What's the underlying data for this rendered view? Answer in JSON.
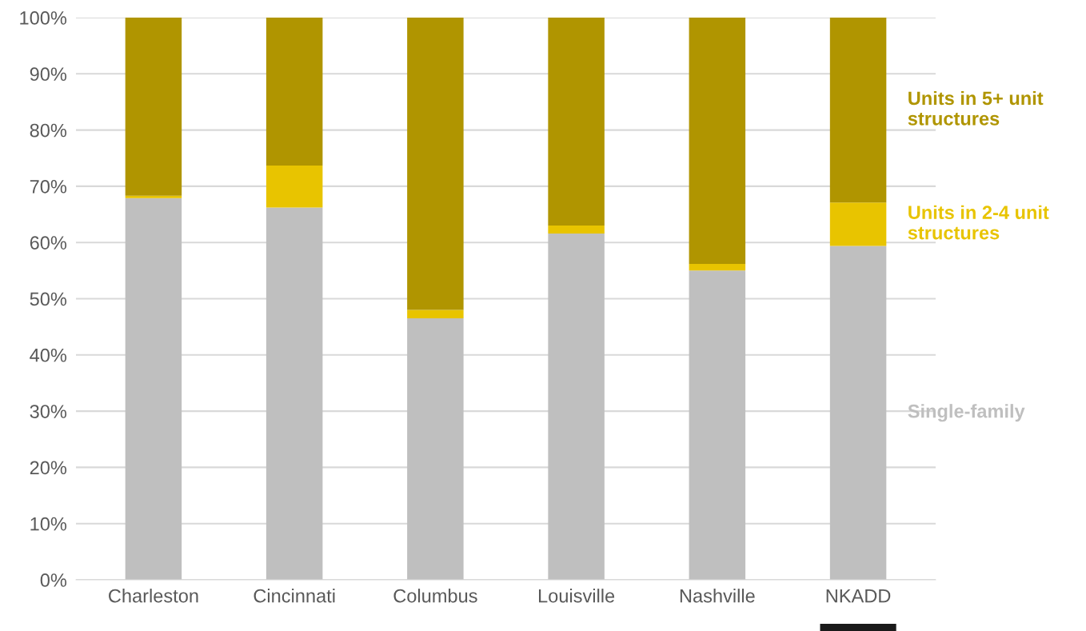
{
  "chart_data": {
    "type": "bar",
    "stacked": true,
    "categories": [
      "Charleston",
      "Cincinnati",
      "Columbus",
      "Louisville",
      "Nashville",
      "NKADD"
    ],
    "series": [
      {
        "name": "Single-family",
        "color": "#bfbfbf",
        "values": [
          67.9,
          66.2,
          46.5,
          61.6,
          55.0,
          59.4
        ]
      },
      {
        "name": "Units in 2-4 unit structures",
        "color": "#e8c400",
        "values": [
          0.4,
          7.5,
          1.5,
          1.4,
          1.2,
          7.7
        ]
      },
      {
        "name": "Units in 5+ unit structures",
        "color": "#b09500",
        "values": [
          31.7,
          26.3,
          52.0,
          37.0,
          43.8,
          32.9
        ]
      }
    ],
    "ylim": [
      0,
      100
    ],
    "yticks": [
      {
        "value": 0,
        "label": "0%"
      },
      {
        "value": 10,
        "label": "10%"
      },
      {
        "value": 20,
        "label": "20%"
      },
      {
        "value": 30,
        "label": "30%"
      },
      {
        "value": 40,
        "label": "40%"
      },
      {
        "value": 50,
        "label": "50%"
      },
      {
        "value": 60,
        "label": "60%"
      },
      {
        "value": 70,
        "label": "70%"
      },
      {
        "value": 80,
        "label": "80%"
      },
      {
        "value": 90,
        "label": "90%"
      },
      {
        "value": 100,
        "label": "100%"
      }
    ],
    "grid": "y",
    "legend": false
  }
}
